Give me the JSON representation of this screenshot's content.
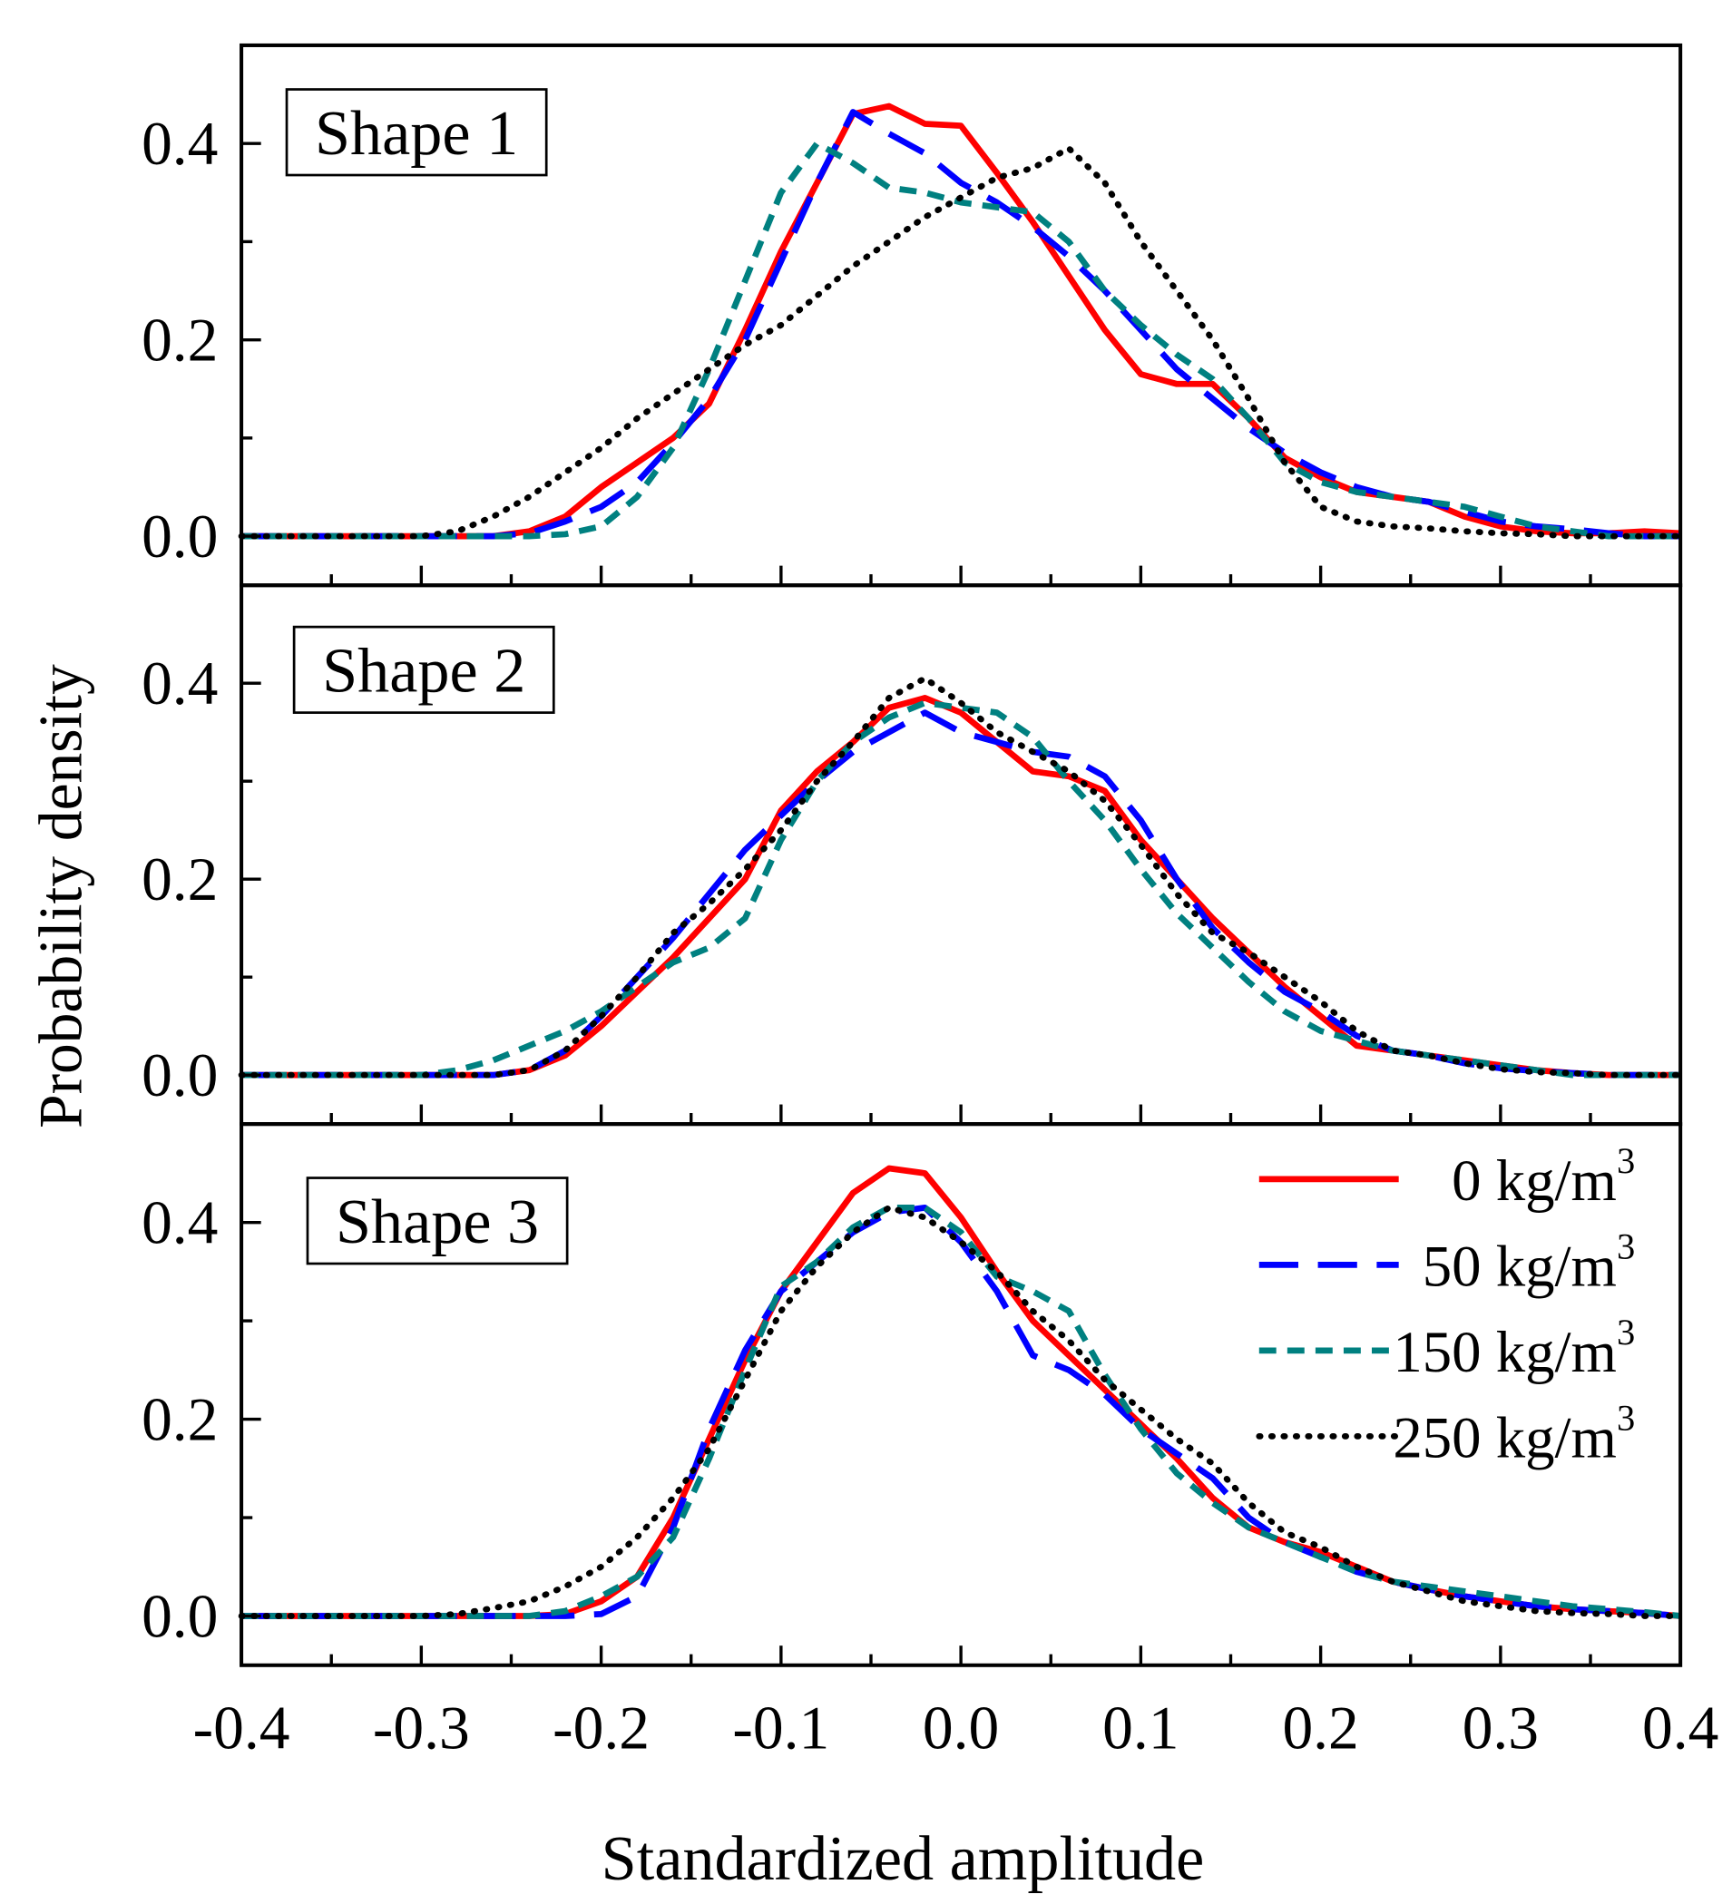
{
  "chart_data": {
    "type": "line",
    "xlabel": "Standardized amplitude",
    "ylabel": "Probability density",
    "xlim": [
      -0.4,
      0.4
    ],
    "ylim": [
      -0.05,
      0.5
    ],
    "x_ticks": [
      "-0.4",
      "-0.3",
      "-0.2",
      "-0.1",
      "0.0",
      "0.1",
      "0.2",
      "0.3",
      "0.4"
    ],
    "y_ticks": [
      "0.0",
      "0.2",
      "0.4"
    ],
    "x": {
      "start": -0.4,
      "step": 0.02,
      "count": 41
    },
    "legend": {
      "placement": "panel-3 right",
      "entries": [
        {
          "label": "0 kg/m",
          "sup": "3",
          "color": "#ff0000",
          "style": "solid"
        },
        {
          "label": "50 kg/m",
          "sup": "3",
          "color": "#0000ff",
          "style": "dash"
        },
        {
          "label": "150 kg/m",
          "sup": "3",
          "color": "#008080",
          "style": "short-dash"
        },
        {
          "label": "250 kg/m",
          "sup": "3",
          "color": "#000000",
          "style": "dot"
        }
      ]
    },
    "panels": [
      {
        "title": "Shape 1",
        "series": [
          {
            "name": "0 kg/m3",
            "values": [
              0,
              0,
              0,
              0,
              0,
              0,
              0,
              0,
              0.005,
              0.02,
              0.05,
              0.075,
              0.1,
              0.135,
              0.21,
              0.29,
              0.36,
              0.43,
              0.438,
              0.42,
              0.418,
              0.37,
              0.32,
              0.265,
              0.21,
              0.165,
              0.155,
              0.155,
              0.12,
              0.08,
              0.06,
              0.045,
              0.04,
              0.035,
              0.02,
              0.01,
              0.005,
              0.003,
              0.003,
              0.005,
              0.003
            ]
          },
          {
            "name": "50 kg/m3",
            "values": [
              0,
              0,
              0,
              0,
              0,
              0,
              0,
              0,
              0.003,
              0.015,
              0.03,
              0.055,
              0.095,
              0.14,
              0.2,
              0.28,
              0.36,
              0.432,
              0.41,
              0.39,
              0.36,
              0.34,
              0.315,
              0.285,
              0.25,
              0.21,
              0.17,
              0.14,
              0.11,
              0.085,
              0.065,
              0.05,
              0.04,
              0.035,
              0.025,
              0.015,
              0.01,
              0.007,
              0.003,
              0,
              0
            ]
          },
          {
            "name": "150 kg/m3",
            "values": [
              0,
              0,
              0,
              0,
              0,
              0,
              0,
              0,
              0,
              0.002,
              0.01,
              0.04,
              0.09,
              0.17,
              0.26,
              0.35,
              0.4,
              0.38,
              0.355,
              0.35,
              0.34,
              0.335,
              0.33,
              0.3,
              0.25,
              0.215,
              0.185,
              0.16,
              0.12,
              0.075,
              0.055,
              0.045,
              0.04,
              0.035,
              0.03,
              0.02,
              0.01,
              0.005,
              0,
              0,
              0
            ]
          },
          {
            "name": "250 kg/m3",
            "values": [
              0,
              0,
              0,
              0,
              0,
              0,
              0.005,
              0.02,
              0.04,
              0.065,
              0.09,
              0.12,
              0.145,
              0.17,
              0.195,
              0.215,
              0.245,
              0.275,
              0.3,
              0.325,
              0.345,
              0.365,
              0.375,
              0.395,
              0.36,
              0.3,
              0.25,
              0.2,
              0.14,
              0.075,
              0.03,
              0.015,
              0.01,
              0.008,
              0.005,
              0.003,
              0.002,
              0,
              0,
              0,
              0
            ]
          }
        ]
      },
      {
        "title": "Shape 2",
        "series": [
          {
            "name": "0 kg/m3",
            "values": [
              0,
              0,
              0,
              0,
              0,
              0,
              0,
              0,
              0.005,
              0.02,
              0.05,
              0.085,
              0.12,
              0.16,
              0.2,
              0.27,
              0.31,
              0.34,
              0.375,
              0.385,
              0.37,
              0.34,
              0.31,
              0.305,
              0.29,
              0.24,
              0.2,
              0.16,
              0.125,
              0.09,
              0.06,
              0.03,
              0.025,
              0.02,
              0.015,
              0.01,
              0.005,
              0.002,
              0,
              0,
              0
            ]
          },
          {
            "name": "50 kg/m3",
            "values": [
              0,
              0,
              0,
              0,
              0,
              0,
              0,
              0,
              0.005,
              0.025,
              0.06,
              0.1,
              0.14,
              0.185,
              0.23,
              0.265,
              0.3,
              0.33,
              0.35,
              0.37,
              0.35,
              0.34,
              0.33,
              0.325,
              0.305,
              0.26,
              0.2,
              0.15,
              0.115,
              0.085,
              0.065,
              0.04,
              0.025,
              0.02,
              0.012,
              0.007,
              0.004,
              0.002,
              0,
              0,
              0
            ]
          },
          {
            "name": "150 kg/m3",
            "values": [
              0,
              0,
              0,
              0,
              0,
              0,
              0.005,
              0.015,
              0.03,
              0.045,
              0.065,
              0.09,
              0.115,
              0.13,
              0.16,
              0.24,
              0.3,
              0.34,
              0.365,
              0.38,
              0.375,
              0.37,
              0.345,
              0.3,
              0.26,
              0.21,
              0.165,
              0.13,
              0.095,
              0.065,
              0.045,
              0.035,
              0.025,
              0.02,
              0.015,
              0.01,
              0.005,
              0,
              0,
              0,
              0
            ]
          },
          {
            "name": "250 kg/m3",
            "values": [
              0,
              0,
              0,
              0,
              0,
              0,
              0,
              0,
              0.005,
              0.025,
              0.06,
              0.1,
              0.145,
              0.175,
              0.21,
              0.25,
              0.3,
              0.34,
              0.385,
              0.405,
              0.38,
              0.35,
              0.33,
              0.31,
              0.28,
              0.235,
              0.185,
              0.145,
              0.125,
              0.1,
              0.075,
              0.045,
              0.025,
              0.02,
              0.012,
              0.006,
              0.003,
              0.002,
              0,
              0,
              0
            ]
          }
        ]
      },
      {
        "title": "Shape 3",
        "series": [
          {
            "name": "0 kg/m3",
            "values": [
              0,
              0,
              0,
              0,
              0,
              0,
              0,
              0,
              0,
              0.002,
              0.015,
              0.04,
              0.1,
              0.18,
              0.26,
              0.33,
              0.38,
              0.43,
              0.455,
              0.45,
              0.405,
              0.35,
              0.3,
              0.265,
              0.23,
              0.195,
              0.16,
              0.12,
              0.09,
              0.075,
              0.065,
              0.05,
              0.035,
              0.027,
              0.02,
              0.015,
              0.01,
              0.007,
              0.005,
              0.003,
              0
            ]
          },
          {
            "name": "50 kg/m3",
            "values": [
              0,
              0,
              0,
              0,
              0,
              0,
              0,
              0,
              0,
              0,
              0.002,
              0.02,
              0.09,
              0.19,
              0.27,
              0.33,
              0.36,
              0.39,
              0.41,
              0.415,
              0.38,
              0.33,
              0.265,
              0.25,
              0.225,
              0.19,
              0.165,
              0.14,
              0.1,
              0.075,
              0.06,
              0.045,
              0.035,
              0.027,
              0.02,
              0.015,
              0.01,
              0.007,
              0.005,
              0.003,
              0
            ]
          },
          {
            "name": "150 kg/m3",
            "values": [
              0,
              0,
              0,
              0,
              0,
              0,
              0,
              0,
              0,
              0.005,
              0.02,
              0.04,
              0.08,
              0.16,
              0.25,
              0.335,
              0.36,
              0.395,
              0.415,
              0.415,
              0.39,
              0.345,
              0.33,
              0.31,
              0.245,
              0.19,
              0.145,
              0.115,
              0.09,
              0.075,
              0.06,
              0.045,
              0.035,
              0.03,
              0.025,
              0.02,
              0.015,
              0.01,
              0.007,
              0.004,
              0
            ]
          },
          {
            "name": "250 kg/m3",
            "values": [
              0,
              0,
              0,
              0,
              0,
              0,
              0.002,
              0.008,
              0.015,
              0.03,
              0.05,
              0.08,
              0.12,
              0.17,
              0.24,
              0.31,
              0.355,
              0.39,
              0.415,
              0.405,
              0.38,
              0.35,
              0.31,
              0.28,
              0.24,
              0.21,
              0.18,
              0.155,
              0.115,
              0.085,
              0.07,
              0.05,
              0.035,
              0.025,
              0.015,
              0.01,
              0.005,
              0.003,
              0.002,
              0,
              0
            ]
          }
        ]
      }
    ]
  }
}
